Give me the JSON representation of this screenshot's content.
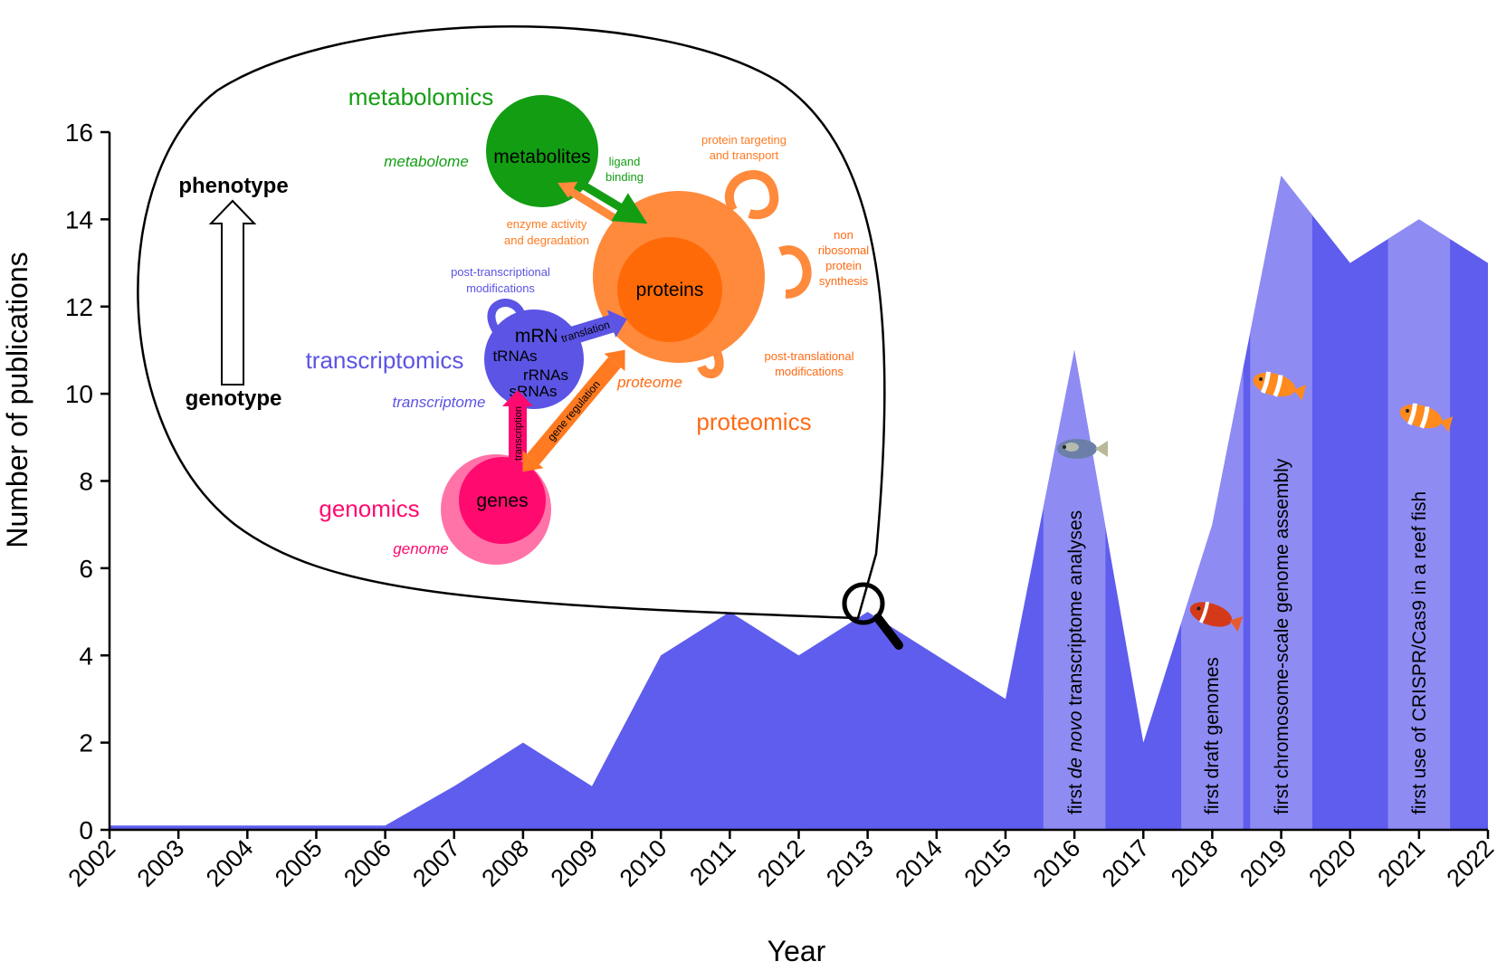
{
  "chart_data": {
    "type": "area",
    "xlabel": "Year",
    "ylabel": "Number of publications",
    "ylim": [
      0,
      16
    ],
    "yticks": [
      "0",
      "2",
      "4",
      "6",
      "8",
      "10",
      "12",
      "14",
      "16"
    ],
    "categories": [
      "2002",
      "2003",
      "2004",
      "2005",
      "2006",
      "2007",
      "2008",
      "2009",
      "2010",
      "2011",
      "2012",
      "2013",
      "2014",
      "2015",
      "2016",
      "2017",
      "2018",
      "2019",
      "2020",
      "2021",
      "2022"
    ],
    "values": [
      0.1,
      0.1,
      0.1,
      0.1,
      0.1,
      1,
      2,
      1,
      4,
      5,
      4,
      5,
      4,
      3,
      11,
      2,
      7,
      15,
      13,
      14,
      13
    ],
    "series_color": "#5f5ded",
    "highlight_color": "#8e8cf3",
    "grid": false,
    "milestones": [
      {
        "year": "2016",
        "label_prefix": "first ",
        "label_italic": "de novo",
        "label_suffix": " transcriptome analyses"
      },
      {
        "year": "2018",
        "label_prefix": "first draft genomes",
        "label_italic": "",
        "label_suffix": ""
      },
      {
        "year": "2019",
        "label_prefix": "first chromosome-scale genome assembly",
        "label_italic": "",
        "label_suffix": ""
      },
      {
        "year": "2021",
        "label_prefix": "first use of CRISPR/Cas9 in a reef fish",
        "label_italic": "",
        "label_suffix": ""
      }
    ]
  },
  "inset": {
    "focus_year": "2013",
    "phenotype": "phenotype",
    "genotype": "genotype",
    "metabolomics": "metabolomics",
    "metabolome": "metabolome",
    "metabolites": "metabolites",
    "ligand_binding": [
      "ligand",
      "binding"
    ],
    "enzyme_activity": [
      "enzyme activity",
      "and degradation"
    ],
    "protein_targeting": [
      "protein targeting",
      "and transport"
    ],
    "non_ribosomal": [
      "non",
      "ribosomal",
      "protein",
      "synthesis"
    ],
    "proteins": "proteins",
    "proteome": "proteome",
    "proteomics": "proteomics",
    "post_translational": [
      "post-translational",
      "modifications"
    ],
    "post_transcriptional": [
      "post-transcriptional",
      "modifications"
    ],
    "transcriptomics": "transcriptomics",
    "transcriptome": "transcriptome",
    "mrnas": "mRNAs",
    "trnas": "tRNAs",
    "rrnas": "rRNAs",
    "srnas": "sRNAs",
    "translation": "translation",
    "transcription": "transcription",
    "gene_regulation": "gene regulation",
    "genes": "genes",
    "genome": "genome",
    "genomics": "genomics",
    "colors": {
      "metabolomics": "#139d13",
      "proteomics": "#ff6a13",
      "proteins_outer": "#ff8a3c",
      "transcriptomics": "#5b54e4",
      "genomics": "#ff0a6e"
    }
  }
}
